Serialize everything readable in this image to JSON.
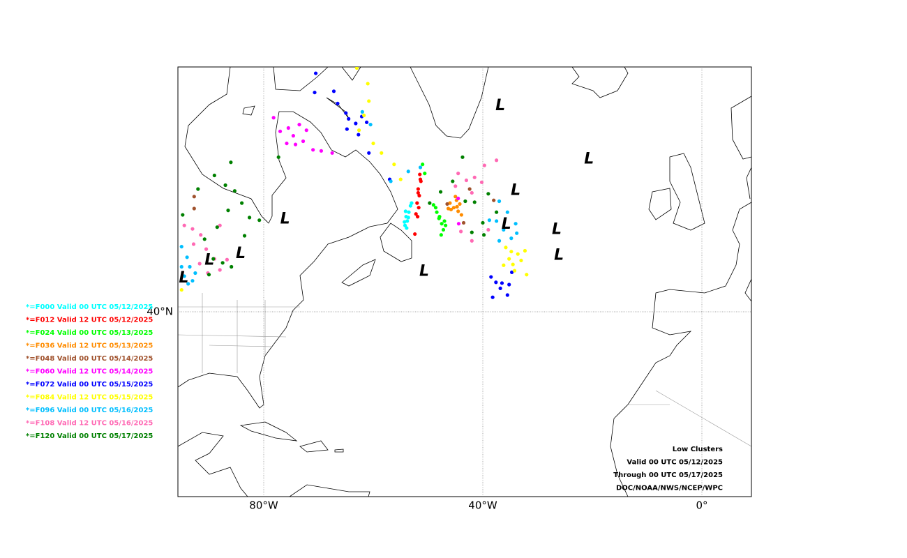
{
  "map": {
    "lon_ticks": [
      {
        "value": -80,
        "label": "80°W"
      },
      {
        "value": -40,
        "label": "40°W"
      },
      {
        "value": 0,
        "label": "0°"
      }
    ],
    "lat_ticks": [
      {
        "value": 40,
        "label": "40°N"
      }
    ],
    "low_label": "L",
    "lows": [
      [
        -36.8,
        62.8
      ],
      [
        -20.6,
        58.0
      ],
      [
        -34.0,
        54.8
      ],
      [
        -76.1,
        51.7
      ],
      [
        -35.7,
        51.1
      ],
      [
        -26.5,
        50.5
      ],
      [
        -84.2,
        47.6
      ],
      [
        -26.1,
        47.4
      ],
      [
        -89.9,
        46.8
      ],
      [
        -50.7,
        45.4
      ],
      [
        -94.6,
        44.5
      ]
    ],
    "series": [
      {
        "name": "*=F000 Valid 00 UTC 05/12/2025",
        "color": "#00ffff",
        "points": [
          [
            -54.2,
            51.0
          ],
          [
            -53.8,
            51.5
          ],
          [
            -54.0,
            52.0
          ],
          [
            -53.5,
            52.5
          ],
          [
            -53.2,
            53.2
          ],
          [
            -53.9,
            50.7
          ],
          [
            -54.3,
            51.4
          ],
          [
            -53.6,
            51.9
          ],
          [
            -53.0,
            53.5
          ],
          [
            -54.1,
            52.6
          ]
        ]
      },
      {
        "name": "*=F012 Valid 12 UTC 05/12/2025",
        "color": "#ff0000",
        "points": [
          [
            -51.5,
            56.5
          ],
          [
            -51.3,
            55.8
          ],
          [
            -51.8,
            55.0
          ],
          [
            -51.6,
            54.3
          ],
          [
            -52.0,
            53.5
          ],
          [
            -51.7,
            53.0
          ],
          [
            -52.2,
            52.3
          ],
          [
            -51.9,
            52.0
          ],
          [
            -52.4,
            50.0
          ],
          [
            -51.4,
            56.0
          ],
          [
            -51.8,
            54.6
          ]
        ]
      },
      {
        "name": "*=F024 Valid 00 UTC 05/13/2025",
        "color": "#00ff00",
        "points": [
          [
            -51.0,
            57.5
          ],
          [
            -50.6,
            56.6
          ],
          [
            -49.0,
            53.3
          ],
          [
            -48.4,
            52.5
          ],
          [
            -48.0,
            51.8
          ],
          [
            -47.5,
            51.2
          ],
          [
            -47.2,
            50.5
          ],
          [
            -47.9,
            52.0
          ],
          [
            -47.0,
            51.5
          ],
          [
            -48.6,
            53.0
          ],
          [
            -47.6,
            49.9
          ],
          [
            -46.8,
            51.0
          ]
        ]
      },
      {
        "name": "*=F036 Valid 12 UTC 05/13/2025",
        "color": "#ff8c00",
        "points": [
          [
            -46.0,
            53.5
          ],
          [
            -45.3,
            53.0
          ],
          [
            -44.8,
            53.8
          ],
          [
            -44.5,
            52.6
          ],
          [
            -45.8,
            52.8
          ],
          [
            -44.2,
            53.4
          ],
          [
            -45.0,
            54.2
          ],
          [
            -43.9,
            52.2
          ],
          [
            -46.3,
            52.9
          ],
          [
            -44.7,
            53.1
          ]
        ]
      },
      {
        "name": "*=F048 Valid 00 UTC 05/14/2025",
        "color": "#a0522d",
        "points": [
          [
            -92.7,
            54.2
          ],
          [
            -92.7,
            52.9
          ],
          [
            -46.5,
            53.4
          ],
          [
            -42.4,
            55.0
          ],
          [
            -38.0,
            53.8
          ],
          [
            -43.5,
            51.3
          ]
        ]
      },
      {
        "name": "*=F060 Valid 12 UTC 05/14/2025",
        "color": "#ff00ff",
        "points": [
          [
            -78.2,
            61.8
          ],
          [
            -77.0,
            60.6
          ],
          [
            -75.5,
            60.9
          ],
          [
            -74.6,
            60.2
          ],
          [
            -73.5,
            61.2
          ],
          [
            -72.2,
            60.7
          ],
          [
            -74.2,
            59.4
          ],
          [
            -72.8,
            59.7
          ],
          [
            -71.0,
            58.9
          ],
          [
            -69.5,
            58.8
          ],
          [
            -67.5,
            58.6
          ],
          [
            -75.8,
            59.5
          ],
          [
            -44.4,
            51.2
          ],
          [
            -44.5,
            54.0
          ]
        ]
      },
      {
        "name": "*=F072 Valid 00 UTC 05/15/2025",
        "color": "#0000ff",
        "points": [
          [
            -70.5,
            65.4
          ],
          [
            -70.7,
            63.9
          ],
          [
            -67.2,
            64.0
          ],
          [
            -66.5,
            63.0
          ],
          [
            -65.0,
            62.2
          ],
          [
            -64.5,
            61.7
          ],
          [
            -63.2,
            61.3
          ],
          [
            -62.1,
            61.9
          ],
          [
            -64.8,
            60.8
          ],
          [
            -62.7,
            60.3
          ],
          [
            -61.2,
            61.4
          ],
          [
            -60.8,
            58.6
          ],
          [
            -57.0,
            56.0
          ],
          [
            -38.5,
            44.7
          ],
          [
            -37.6,
            44.0
          ],
          [
            -36.5,
            43.9
          ],
          [
            -35.2,
            43.7
          ],
          [
            -36.8,
            43.2
          ],
          [
            -35.5,
            42.3
          ],
          [
            -38.2,
            42.0
          ],
          [
            -34.7,
            45.3
          ]
        ]
      },
      {
        "name": "*=F084 Valid 12 UTC 05/15/2025",
        "color": "#ffff00",
        "points": [
          [
            -63.0,
            65.8
          ],
          [
            -61.0,
            64.6
          ],
          [
            -60.8,
            63.2
          ],
          [
            -61.7,
            62.0
          ],
          [
            -62.6,
            60.7
          ],
          [
            -60.0,
            59.5
          ],
          [
            -58.5,
            58.6
          ],
          [
            -56.2,
            57.5
          ],
          [
            -55.0,
            56.0
          ],
          [
            -35.8,
            48.4
          ],
          [
            -34.8,
            47.9
          ],
          [
            -33.6,
            47.6
          ],
          [
            -35.2,
            47.0
          ],
          [
            -34.5,
            46.3
          ],
          [
            -36.2,
            46.2
          ],
          [
            -33.0,
            46.8
          ],
          [
            -34.2,
            45.5
          ],
          [
            -32.3,
            48.0
          ],
          [
            -32.0,
            45.0
          ],
          [
            -95.0,
            43.0
          ]
        ]
      },
      {
        "name": "*=F096 Valid 00 UTC 05/16/2025",
        "color": "#00bfff",
        "points": [
          [
            -95.0,
            48.5
          ],
          [
            -94.0,
            47.2
          ],
          [
            -95.0,
            46.0
          ],
          [
            -93.5,
            46.0
          ],
          [
            -94.5,
            44.8
          ],
          [
            -93.0,
            44.2
          ],
          [
            -92.5,
            45.2
          ],
          [
            -93.8,
            43.8
          ],
          [
            -62.0,
            62.3
          ],
          [
            -60.5,
            61.2
          ],
          [
            -56.8,
            55.8
          ],
          [
            -53.6,
            56.8
          ],
          [
            -51.4,
            57.2
          ],
          [
            -37.0,
            53.7
          ],
          [
            -35.5,
            52.5
          ],
          [
            -37.5,
            51.5
          ],
          [
            -34.0,
            51.2
          ],
          [
            -36.2,
            50.5
          ],
          [
            -34.8,
            49.5
          ],
          [
            -37.0,
            49.2
          ],
          [
            -33.8,
            50.1
          ],
          [
            -38.8,
            51.6
          ]
        ]
      },
      {
        "name": "*=F108 Valid 12 UTC 05/16/2025",
        "color": "#ff69b4",
        "points": [
          [
            -94.5,
            51.0
          ],
          [
            -93.0,
            50.6
          ],
          [
            -91.5,
            49.9
          ],
          [
            -92.8,
            48.8
          ],
          [
            -90.5,
            48.2
          ],
          [
            -89.0,
            47.0
          ],
          [
            -91.7,
            46.4
          ],
          [
            -88.0,
            45.6
          ],
          [
            -86.7,
            46.9
          ],
          [
            -90.2,
            45.2
          ],
          [
            -88.0,
            51.0
          ],
          [
            -44.5,
            56.6
          ],
          [
            -43.0,
            55.9
          ],
          [
            -41.5,
            56.2
          ],
          [
            -40.2,
            55.7
          ],
          [
            -42.0,
            54.6
          ],
          [
            -39.7,
            57.4
          ],
          [
            -37.5,
            57.9
          ],
          [
            -44.0,
            50.3
          ],
          [
            -42.0,
            49.2
          ],
          [
            -39.0,
            50.5
          ],
          [
            -45.0,
            55.3
          ]
        ]
      },
      {
        "name": "*=F120 Valid 00 UTC 05/17/2025",
        "color": "#008000",
        "points": [
          [
            -94.8,
            52.2
          ],
          [
            -92.0,
            55.0
          ],
          [
            -89.0,
            56.4
          ],
          [
            -87.0,
            55.4
          ],
          [
            -85.3,
            54.8
          ],
          [
            -86.5,
            52.7
          ],
          [
            -84.0,
            53.5
          ],
          [
            -82.6,
            51.9
          ],
          [
            -80.8,
            51.6
          ],
          [
            -83.5,
            49.8
          ],
          [
            -88.5,
            50.8
          ],
          [
            -90.8,
            49.4
          ],
          [
            -89.2,
            47.0
          ],
          [
            -87.5,
            46.5
          ],
          [
            -85.9,
            46.0
          ],
          [
            -90.0,
            45.0
          ],
          [
            -77.3,
            58.2
          ],
          [
            -86.0,
            57.7
          ],
          [
            -43.7,
            58.2
          ],
          [
            -45.5,
            55.8
          ],
          [
            -47.7,
            54.7
          ],
          [
            -43.2,
            53.7
          ],
          [
            -41.5,
            53.6
          ],
          [
            -39.0,
            54.5
          ],
          [
            -40.0,
            51.3
          ],
          [
            -37.5,
            52.5
          ],
          [
            -39.8,
            49.9
          ],
          [
            -42.0,
            50.2
          ],
          [
            -49.7,
            53.5
          ]
        ]
      }
    ],
    "annotation": [
      "Low Clusters",
      "Valid 00 UTC 05/12/2025",
      "Through 00 UTC 05/17/2025",
      "DOC/NOAA/NWS/NCEP/WPC"
    ]
  }
}
